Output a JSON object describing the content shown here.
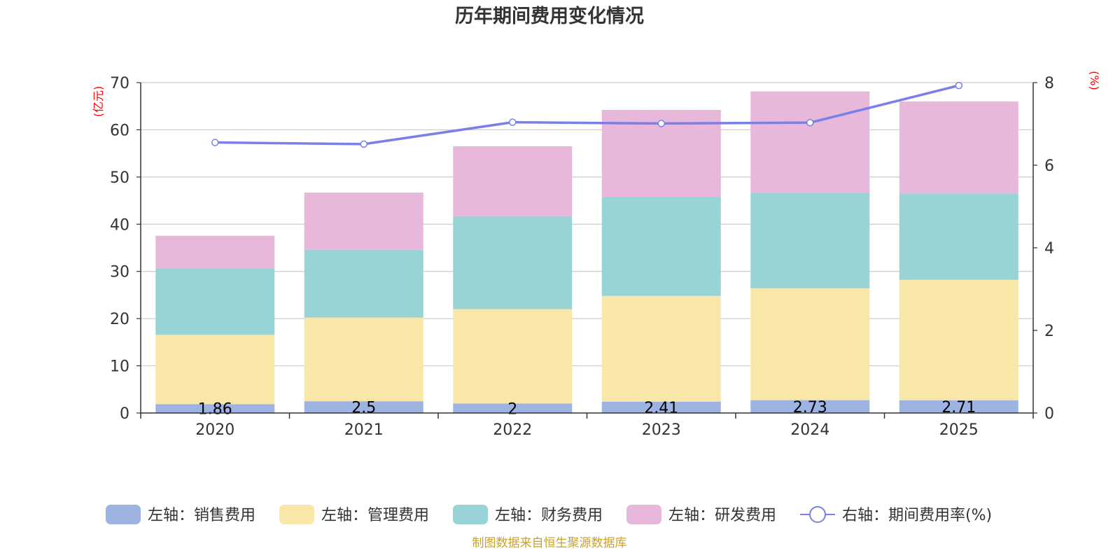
{
  "chart_data": {
    "type": "bar",
    "stacked": true,
    "title": "历年期间费用变化情况",
    "categories": [
      "2020",
      "2021",
      "2022",
      "2023",
      "2024",
      "2025"
    ],
    "left_axis": {
      "unit": "(亿元)",
      "min": 0,
      "max": 70,
      "ticks": [
        "0",
        "10",
        "20",
        "30",
        "40",
        "50",
        "60",
        "70"
      ]
    },
    "right_axis": {
      "unit": "(%)",
      "min": 0,
      "max": 8,
      "ticks": [
        "0",
        "2",
        "4",
        "6",
        "8"
      ]
    },
    "series": [
      {
        "name": "左轴：销售费用",
        "color": "#9db4e2",
        "values": [
          1.86,
          2.5,
          2,
          2.41,
          2.73,
          2.71
        ],
        "labels": [
          "1.86",
          "2.5",
          "2",
          "2.41",
          "2.73",
          "2.71"
        ]
      },
      {
        "name": "左轴：管理费用",
        "color": "#f8e7a8",
        "values": [
          14.7,
          17.7,
          20.0,
          22.4,
          23.7,
          25.5
        ]
      },
      {
        "name": "左轴：财务费用",
        "color": "#98d3d5",
        "values": [
          14.0,
          14.4,
          19.7,
          21.0,
          20.2,
          18.3
        ]
      },
      {
        "name": "左轴：研发费用",
        "color": "#e7b8d9",
        "values": [
          7.0,
          12.1,
          14.8,
          18.4,
          21.5,
          19.5
        ]
      }
    ],
    "line_series": {
      "name": "右轴：期间费用率(%)",
      "color": "#7b7fe8",
      "axis": "right",
      "values": [
        6.55,
        6.51,
        7.04,
        7.01,
        7.03,
        7.93
      ]
    },
    "grid": true,
    "legend": "bottom-center"
  },
  "footer": {
    "source": "制图数据来自恒生聚源数据库",
    "color": "#c9a227"
  }
}
